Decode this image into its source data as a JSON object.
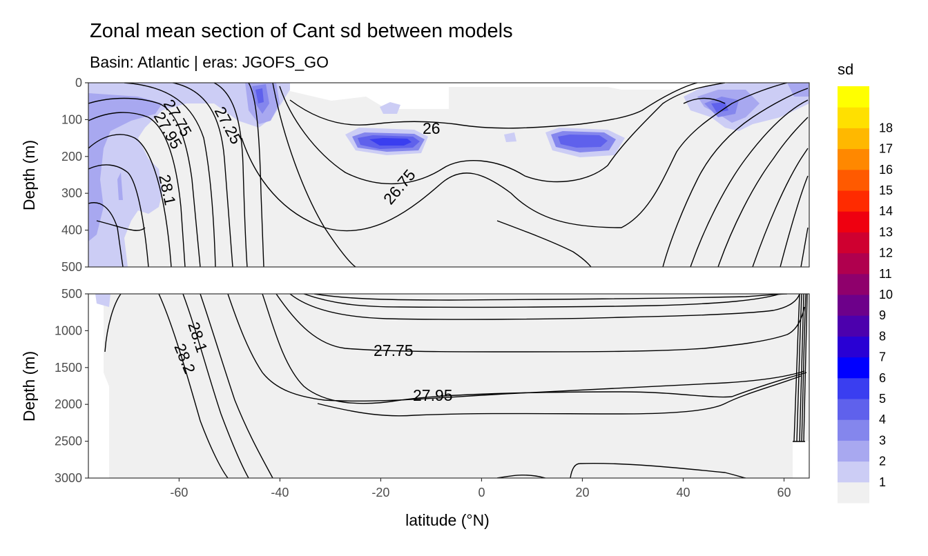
{
  "title": "Zonal mean section of Cant sd between models",
  "subtitle": "Basin: Atlantic | eras: JGOFS_GO",
  "chart_data": {
    "type": "contour-section",
    "title": "Zonal mean section of Cant sd between models",
    "subtitle": "Basin: Atlantic | eras: JGOFS_GO",
    "xlabel": "latitude (°N)",
    "ylabel": "Depth (m)",
    "xlim": [
      -78,
      65
    ],
    "x_ticks": [
      -60,
      -40,
      -20,
      0,
      20,
      40,
      60
    ],
    "panels": [
      {
        "name": "upper",
        "ylim": [
          0,
          500
        ],
        "y_ticks": [
          0,
          100,
          200,
          300,
          400,
          500
        ]
      },
      {
        "name": "lower",
        "ylim": [
          500,
          3000
        ],
        "y_ticks": [
          500,
          1000,
          1500,
          2000,
          2500,
          3000
        ]
      }
    ],
    "legend": {
      "title": "sd",
      "position": "right",
      "levels": [
        1,
        2,
        3,
        4,
        5,
        6,
        7,
        8,
        9,
        10,
        11,
        12,
        13,
        14,
        15,
        16,
        17,
        18
      ],
      "colors": [
        "#f0f0f0",
        "#cccdf5",
        "#a8a8f0",
        "#8486ed",
        "#5f61ec",
        "#3a3ef0",
        "#0000ff",
        "#2900d4",
        "#4c00ad",
        "#6d008a",
        "#8f006c",
        "#b0004e",
        "#cf0030",
        "#ef0010",
        "#ff2b00",
        "#ff5a00",
        "#ff8800",
        "#ffb800",
        "#ffe000",
        "#ffff00"
      ]
    },
    "contour_labels": [
      {
        "text": "27.75",
        "panel": "upper"
      },
      {
        "text": "27.95",
        "panel": "upper"
      },
      {
        "text": "27.25",
        "panel": "upper"
      },
      {
        "text": "26",
        "panel": "upper"
      },
      {
        "text": "28.1",
        "panel": "upper"
      },
      {
        "text": "26.75",
        "panel": "upper"
      },
      {
        "text": "28.1",
        "panel": "lower"
      },
      {
        "text": "28.2",
        "panel": "lower"
      },
      {
        "text": "27.75",
        "panel": "lower"
      },
      {
        "text": "27.95",
        "panel": "lower"
      }
    ]
  }
}
